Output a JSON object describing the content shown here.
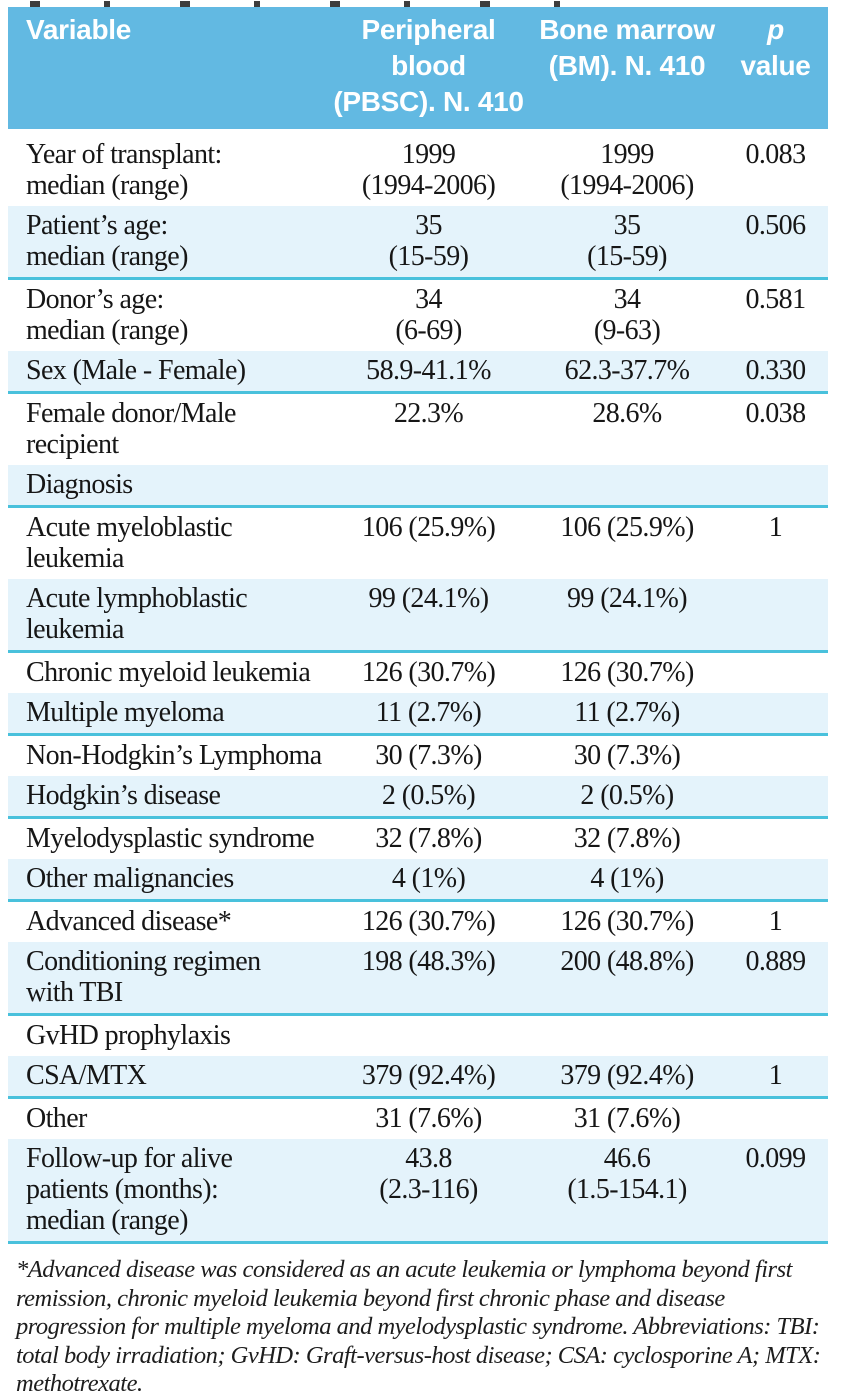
{
  "colors": {
    "header_bg": "#62b9e2",
    "row_shaded_bg": "#e4f3fb",
    "separator": "#49c1dc",
    "header_text": "#ffffff",
    "body_text": "#161616"
  },
  "table": {
    "header": {
      "variable": "Variable",
      "pbsc": [
        "Peripheral blood",
        "(PBSC). N. 410"
      ],
      "bm": [
        "Bone marrow",
        "(BM). N. 410"
      ],
      "p": [
        "p",
        "value"
      ]
    },
    "rows": [
      {
        "variable": [
          "Year of transplant:",
          "median (range)"
        ],
        "pbsc": [
          "1999",
          "(1994-2006)"
        ],
        "bm": [
          "1999",
          "(1994-2006)"
        ],
        "p": "0.083",
        "shaded": false
      },
      {
        "variable": [
          "Patient’s age:",
          "median (range)"
        ],
        "pbsc": [
          "35",
          "(15-59)"
        ],
        "bm": [
          "35",
          "(15-59)"
        ],
        "p": "0.506",
        "shaded": true
      },
      {
        "variable": [
          "Donor’s age:",
          "median (range)"
        ],
        "pbsc": [
          "34",
          "(6-69)"
        ],
        "bm": [
          "34",
          "(9-63)"
        ],
        "p": "0.581",
        "shaded": false
      },
      {
        "variable": [
          "Sex (Male - Female)"
        ],
        "pbsc": [
          "58.9-41.1%"
        ],
        "bm": [
          "62.3-37.7%"
        ],
        "p": "0.330",
        "shaded": true
      },
      {
        "variable": [
          "Female donor/Male recipient"
        ],
        "pbsc": [
          "22.3%"
        ],
        "bm": [
          "28.6%"
        ],
        "p": "0.038",
        "shaded": false
      },
      {
        "variable": [
          "Diagnosis"
        ],
        "pbsc": [],
        "bm": [],
        "p": "",
        "shaded": true
      },
      {
        "variable": [
          "Acute myeloblastic leukemia"
        ],
        "pbsc": [
          "106 (25.9%)"
        ],
        "bm": [
          "106 (25.9%)"
        ],
        "p": "1",
        "shaded": false
      },
      {
        "variable": [
          "Acute lymphoblastic leukemia"
        ],
        "pbsc": [
          "99 (24.1%)"
        ],
        "bm": [
          "99 (24.1%)"
        ],
        "p": "",
        "shaded": true
      },
      {
        "variable": [
          "Chronic myeloid leukemia"
        ],
        "pbsc": [
          "126 (30.7%)"
        ],
        "bm": [
          "126 (30.7%)"
        ],
        "p": "",
        "shaded": false
      },
      {
        "variable": [
          "Multiple myeloma"
        ],
        "pbsc": [
          "11 (2.7%)"
        ],
        "bm": [
          "11 (2.7%)"
        ],
        "p": "",
        "shaded": true
      },
      {
        "variable": [
          "Non-Hodgkin’s Lymphoma"
        ],
        "pbsc": [
          "30 (7.3%)"
        ],
        "bm": [
          "30 (7.3%)"
        ],
        "p": "",
        "shaded": false
      },
      {
        "variable": [
          "Hodgkin’s disease"
        ],
        "pbsc": [
          "2 (0.5%)"
        ],
        "bm": [
          "2 (0.5%)"
        ],
        "p": "",
        "shaded": true
      },
      {
        "variable": [
          "Myelodysplastic syndrome"
        ],
        "pbsc": [
          "32 (7.8%)"
        ],
        "bm": [
          "32 (7.8%)"
        ],
        "p": "",
        "shaded": false
      },
      {
        "variable": [
          "Other malignancies"
        ],
        "pbsc": [
          "4 (1%)"
        ],
        "bm": [
          "4 (1%)"
        ],
        "p": "",
        "shaded": true
      },
      {
        "variable": [
          "Advanced disease*"
        ],
        "pbsc": [
          "126 (30.7%)"
        ],
        "bm": [
          "126 (30.7%)"
        ],
        "p": "1",
        "shaded": false
      },
      {
        "variable": [
          "Conditioning regimen",
          "with TBI"
        ],
        "pbsc": [
          "198 (48.3%)"
        ],
        "bm": [
          "200 (48.8%)"
        ],
        "p": "0.889",
        "shaded": true
      },
      {
        "variable": [
          "GvHD prophylaxis"
        ],
        "pbsc": [],
        "bm": [],
        "p": "",
        "shaded": false
      },
      {
        "variable": [
          "CSA/MTX"
        ],
        "pbsc": [
          "379 (92.4%)"
        ],
        "bm": [
          "379 (92.4%)"
        ],
        "p": "1",
        "shaded": true
      },
      {
        "variable": [
          "Other"
        ],
        "pbsc": [
          "31 (7.6%)"
        ],
        "bm": [
          "31 (7.6%)"
        ],
        "p": "",
        "shaded": false
      },
      {
        "variable": [
          "Follow-up for alive",
          "patients (months):",
          "median (range)"
        ],
        "pbsc": [
          "43.8",
          "(2.3-116)"
        ],
        "bm": [
          "46.6",
          "(1.5-154.1)"
        ],
        "p": "0.099",
        "shaded": true
      }
    ]
  },
  "footnote": "*Advanced disease was considered as an acute leukemia or lymphoma beyond first remission, chronic myeloid leukemia beyond first chronic phase and disease progression for multiple myeloma and myelodysplastic syndrome. Abbreviations: TBI: total body irradiation; GvHD: Graft-versus-host disease; CSA: cyclosporine A; MTX: methotrexate."
}
